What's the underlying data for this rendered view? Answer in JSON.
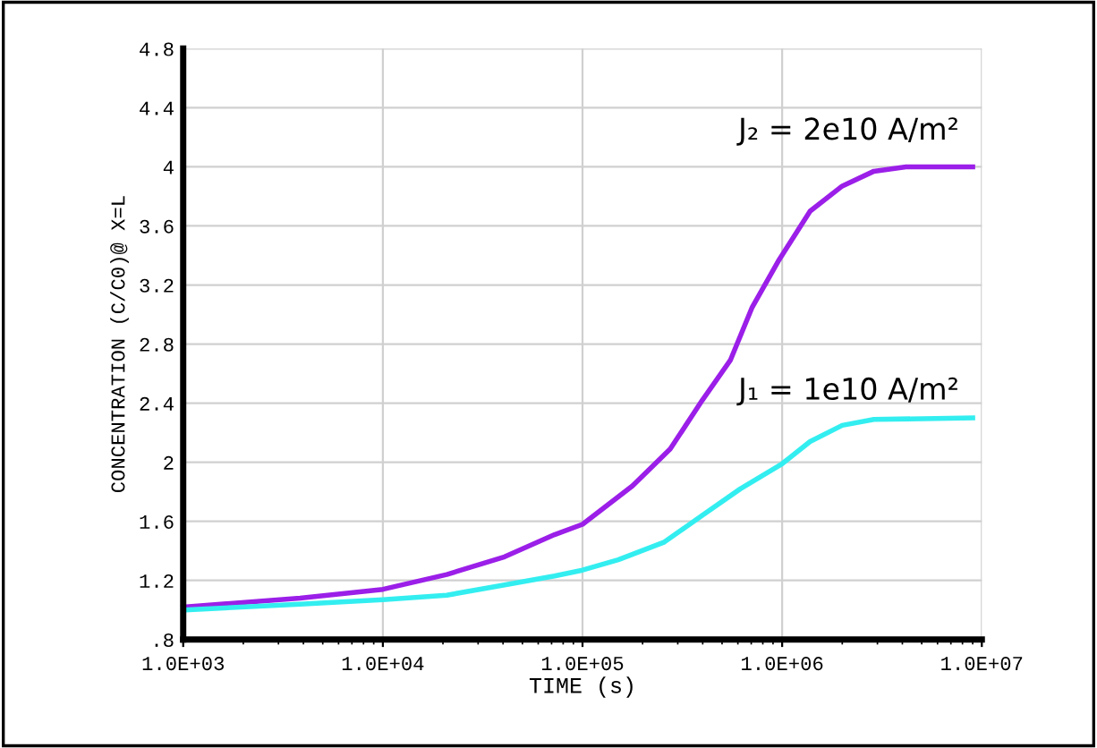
{
  "chart_data": {
    "type": "line",
    "xlabel": "TIME (s)",
    "ylabel": "CONCENTRATION (C/C0)@ X=L",
    "log": "x",
    "grid": true,
    "marker": "none",
    "line_style": "solid",
    "xlim": [
      1000,
      10000000
    ],
    "xticks": [
      {
        "value": 1000,
        "label": "1.0E+03"
      },
      {
        "value": 10000,
        "label": "1.0E+04"
      },
      {
        "value": 100000,
        "label": "1.0E+05"
      },
      {
        "value": 1000000,
        "label": "1.0E+06"
      },
      {
        "value": 10000000,
        "label": "1.0E+07"
      }
    ],
    "ylim": [
      0.8,
      4.8
    ],
    "yticks": [
      {
        "value": 0.8,
        "label": ".8"
      },
      1.2,
      1.6,
      2,
      2.4,
      2.8,
      3.2,
      3.6,
      4,
      4.4,
      4.8
    ],
    "series": [
      {
        "color": "#9b1fe8",
        "x": [
          1000,
          3850,
          10000,
          20900,
          40700,
          72400,
          100000,
          178000,
          275000,
          398000,
          550000,
          708000,
          955000,
          1380000,
          2000000,
          2880000,
          4170000,
          9000000
        ],
        "values": [
          1.02,
          1.08,
          1.14,
          1.24,
          1.36,
          1.51,
          1.58,
          1.84,
          2.09,
          2.42,
          2.69,
          3.05,
          3.36,
          3.7,
          3.87,
          3.97,
          4.0,
          4.0
        ]
      },
      {
        "color": "#33eef0",
        "x": [
          1000,
          3850,
          10000,
          20900,
          40700,
          72400,
          100000,
          151000,
          257000,
          398000,
          617000,
          1000000,
          1380000,
          2000000,
          2880000,
          9000000
        ],
        "values": [
          1.0,
          1.04,
          1.07,
          1.1,
          1.17,
          1.23,
          1.27,
          1.34,
          1.46,
          1.64,
          1.82,
          1.99,
          2.14,
          2.25,
          2.29,
          2.3
        ]
      }
    ],
    "annotations": [
      "J₂ = 2e10 A/m²",
      "J₁ = 1e10 A/m²"
    ]
  }
}
